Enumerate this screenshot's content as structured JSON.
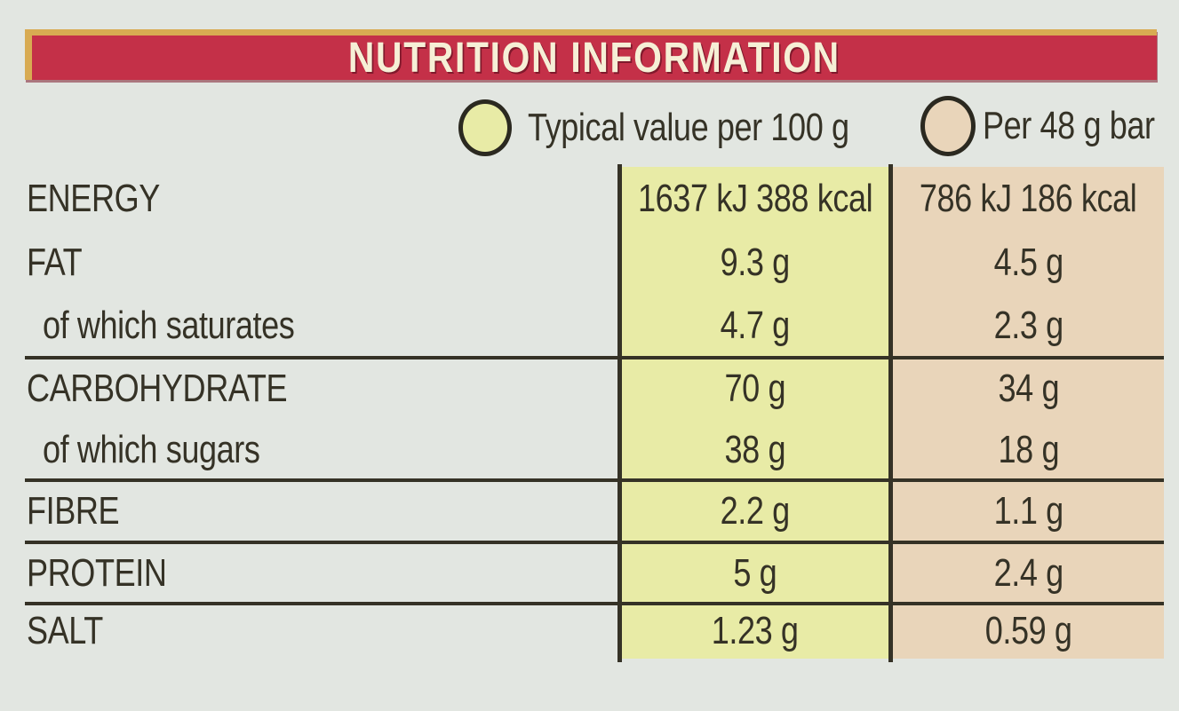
{
  "header": {
    "title": "NUTRITION INFORMATION"
  },
  "legend": {
    "per_100g": {
      "label": "Typical value per 100 g",
      "swatch_icon": "yellow-circle-icon"
    },
    "per_bar": {
      "label": "Per 48 g bar",
      "swatch_icon": "tan-circle-icon"
    }
  },
  "colors": {
    "background": "#e2e6e1",
    "header_red": "#c43048",
    "header_gold": "#d8ab52",
    "per_100g_column": "#e8eba6",
    "per_bar_column": "#e9d5ba",
    "ink": "#353226"
  },
  "table": {
    "column_headers": [
      "",
      "Typical value per 100 g",
      "Per 48 g bar"
    ],
    "rows": [
      {
        "label": "ENERGY",
        "indent": false,
        "per_100g": "1637 kJ 388 kcal",
        "per_bar": "786 kJ 186 kcal",
        "divider_before": false
      },
      {
        "label": "FAT",
        "indent": false,
        "per_100g": "9.3 g",
        "per_bar": "4.5 g",
        "divider_before": false
      },
      {
        "label": "of which saturates",
        "indent": true,
        "per_100g": "4.7 g",
        "per_bar": "2.3 g",
        "divider_before": false
      },
      {
        "label": "CARBOHYDRATE",
        "indent": false,
        "per_100g": "70 g",
        "per_bar": "34 g",
        "divider_before": true
      },
      {
        "label": "of which sugars",
        "indent": true,
        "per_100g": "38 g",
        "per_bar": "18 g",
        "divider_before": false
      },
      {
        "label": "FIBRE",
        "indent": false,
        "per_100g": "2.2 g",
        "per_bar": "1.1 g",
        "divider_before": true
      },
      {
        "label": "PROTEIN",
        "indent": false,
        "per_100g": "5 g",
        "per_bar": "2.4 g",
        "divider_before": true
      },
      {
        "label": "SALT",
        "indent": false,
        "per_100g": "1.23 g",
        "per_bar": "0.59 g",
        "divider_before": true
      }
    ]
  }
}
